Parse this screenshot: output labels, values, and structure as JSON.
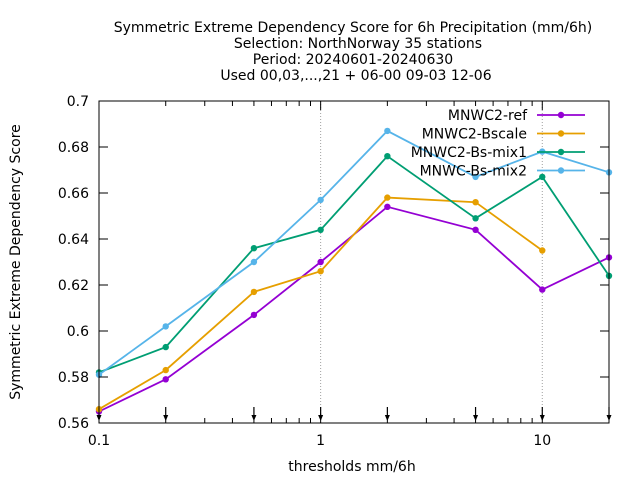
{
  "chart_data": {
    "type": "line",
    "title_lines": [
      "Symmetric Extreme Dependency Score  for 6h Precipitation (mm/6h)",
      "Selection: NorthNorway     35 stations",
      "Period: 20240601-20240630",
      "Used 00,03,...,21 + 06-00 09-03 12-06"
    ],
    "xlabel": "thresholds mm/6h",
    "ylabel": "Symmetric Extreme Dependency Score",
    "x_scale": "log",
    "xlim": [
      0.1,
      20
    ],
    "ylim": [
      0.56,
      0.7
    ],
    "x_ticks": [
      {
        "value": 0.1,
        "label": "0.1"
      },
      {
        "value": 1,
        "label": "1"
      },
      {
        "value": 10,
        "label": "10"
      }
    ],
    "y_ticks": [
      {
        "value": 0.56,
        "label": "0.56"
      },
      {
        "value": 0.58,
        "label": "0.58"
      },
      {
        "value": 0.6,
        "label": "0.6"
      },
      {
        "value": 0.62,
        "label": "0.62"
      },
      {
        "value": 0.64,
        "label": "0.64"
      },
      {
        "value": 0.66,
        "label": "0.66"
      },
      {
        "value": 0.68,
        "label": "0.68"
      },
      {
        "value": 0.7,
        "label": "0.7"
      }
    ],
    "grid": true,
    "legend_position": "top-right",
    "threshold_arrows": [
      0.1,
      0.2,
      0.5,
      1,
      2,
      5,
      10,
      20
    ],
    "series": [
      {
        "name": "MNWC2-ref",
        "color": "#9400d3",
        "x": [
          0.1,
          0.2,
          0.5,
          1,
          2,
          5,
          10,
          20
        ],
        "y": [
          0.565,
          0.579,
          0.607,
          0.63,
          0.654,
          0.644,
          0.618,
          0.632
        ]
      },
      {
        "name": "MNWC2-Bscale",
        "color": "#e69f00",
        "x": [
          0.1,
          0.2,
          0.5,
          1,
          2,
          5,
          10
        ],
        "y": [
          0.566,
          0.583,
          0.617,
          0.626,
          0.658,
          0.656,
          0.635
        ]
      },
      {
        "name": "MNWC2-Bs-mix1",
        "color": "#009e73",
        "x": [
          0.1,
          0.2,
          0.5,
          1,
          2,
          5,
          10,
          20
        ],
        "y": [
          0.582,
          0.593,
          0.636,
          0.644,
          0.676,
          0.649,
          0.667,
          0.624
        ]
      },
      {
        "name": "MNWC-Bs-mix2",
        "color": "#56b4e9",
        "x": [
          0.1,
          0.2,
          0.5,
          1,
          2,
          5,
          10,
          20
        ],
        "y": [
          0.581,
          0.602,
          0.63,
          0.657,
          0.687,
          0.667,
          0.678,
          0.669
        ]
      }
    ]
  }
}
